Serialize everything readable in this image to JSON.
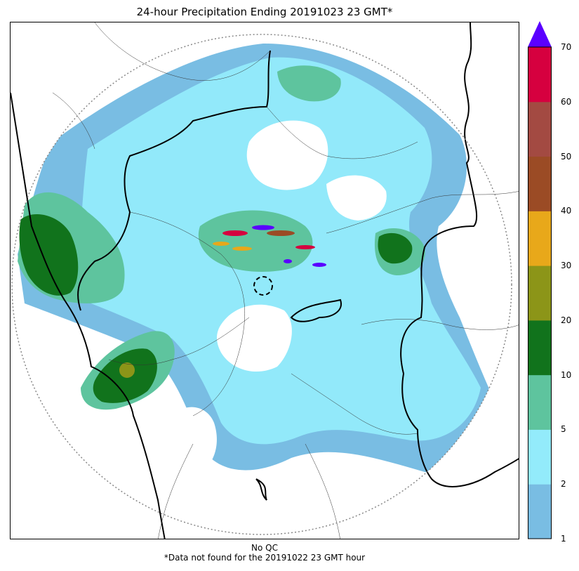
{
  "title": "24-hour Precipitation Ending 20191023 23 GMT*",
  "footer": {
    "qc_note": "No QC",
    "missing_note": "*Data not found for the 20191022 23 GMT hour"
  },
  "colorbar": {
    "ticks": [
      "1",
      "2",
      "5",
      "10",
      "20",
      "30",
      "40",
      "50",
      "60",
      "70"
    ],
    "colors": [
      "#79bde3",
      "#93ebfb",
      "#5ec49e",
      "#11731c",
      "#8c9518",
      "#e8a81a",
      "#9b4b25",
      "#a34a42",
      "#d6003f"
    ],
    "extend_color": "#5a00ff"
  },
  "map": {
    "radar_marker": "dashed-circle",
    "range_ring": "dotted-circle"
  }
}
